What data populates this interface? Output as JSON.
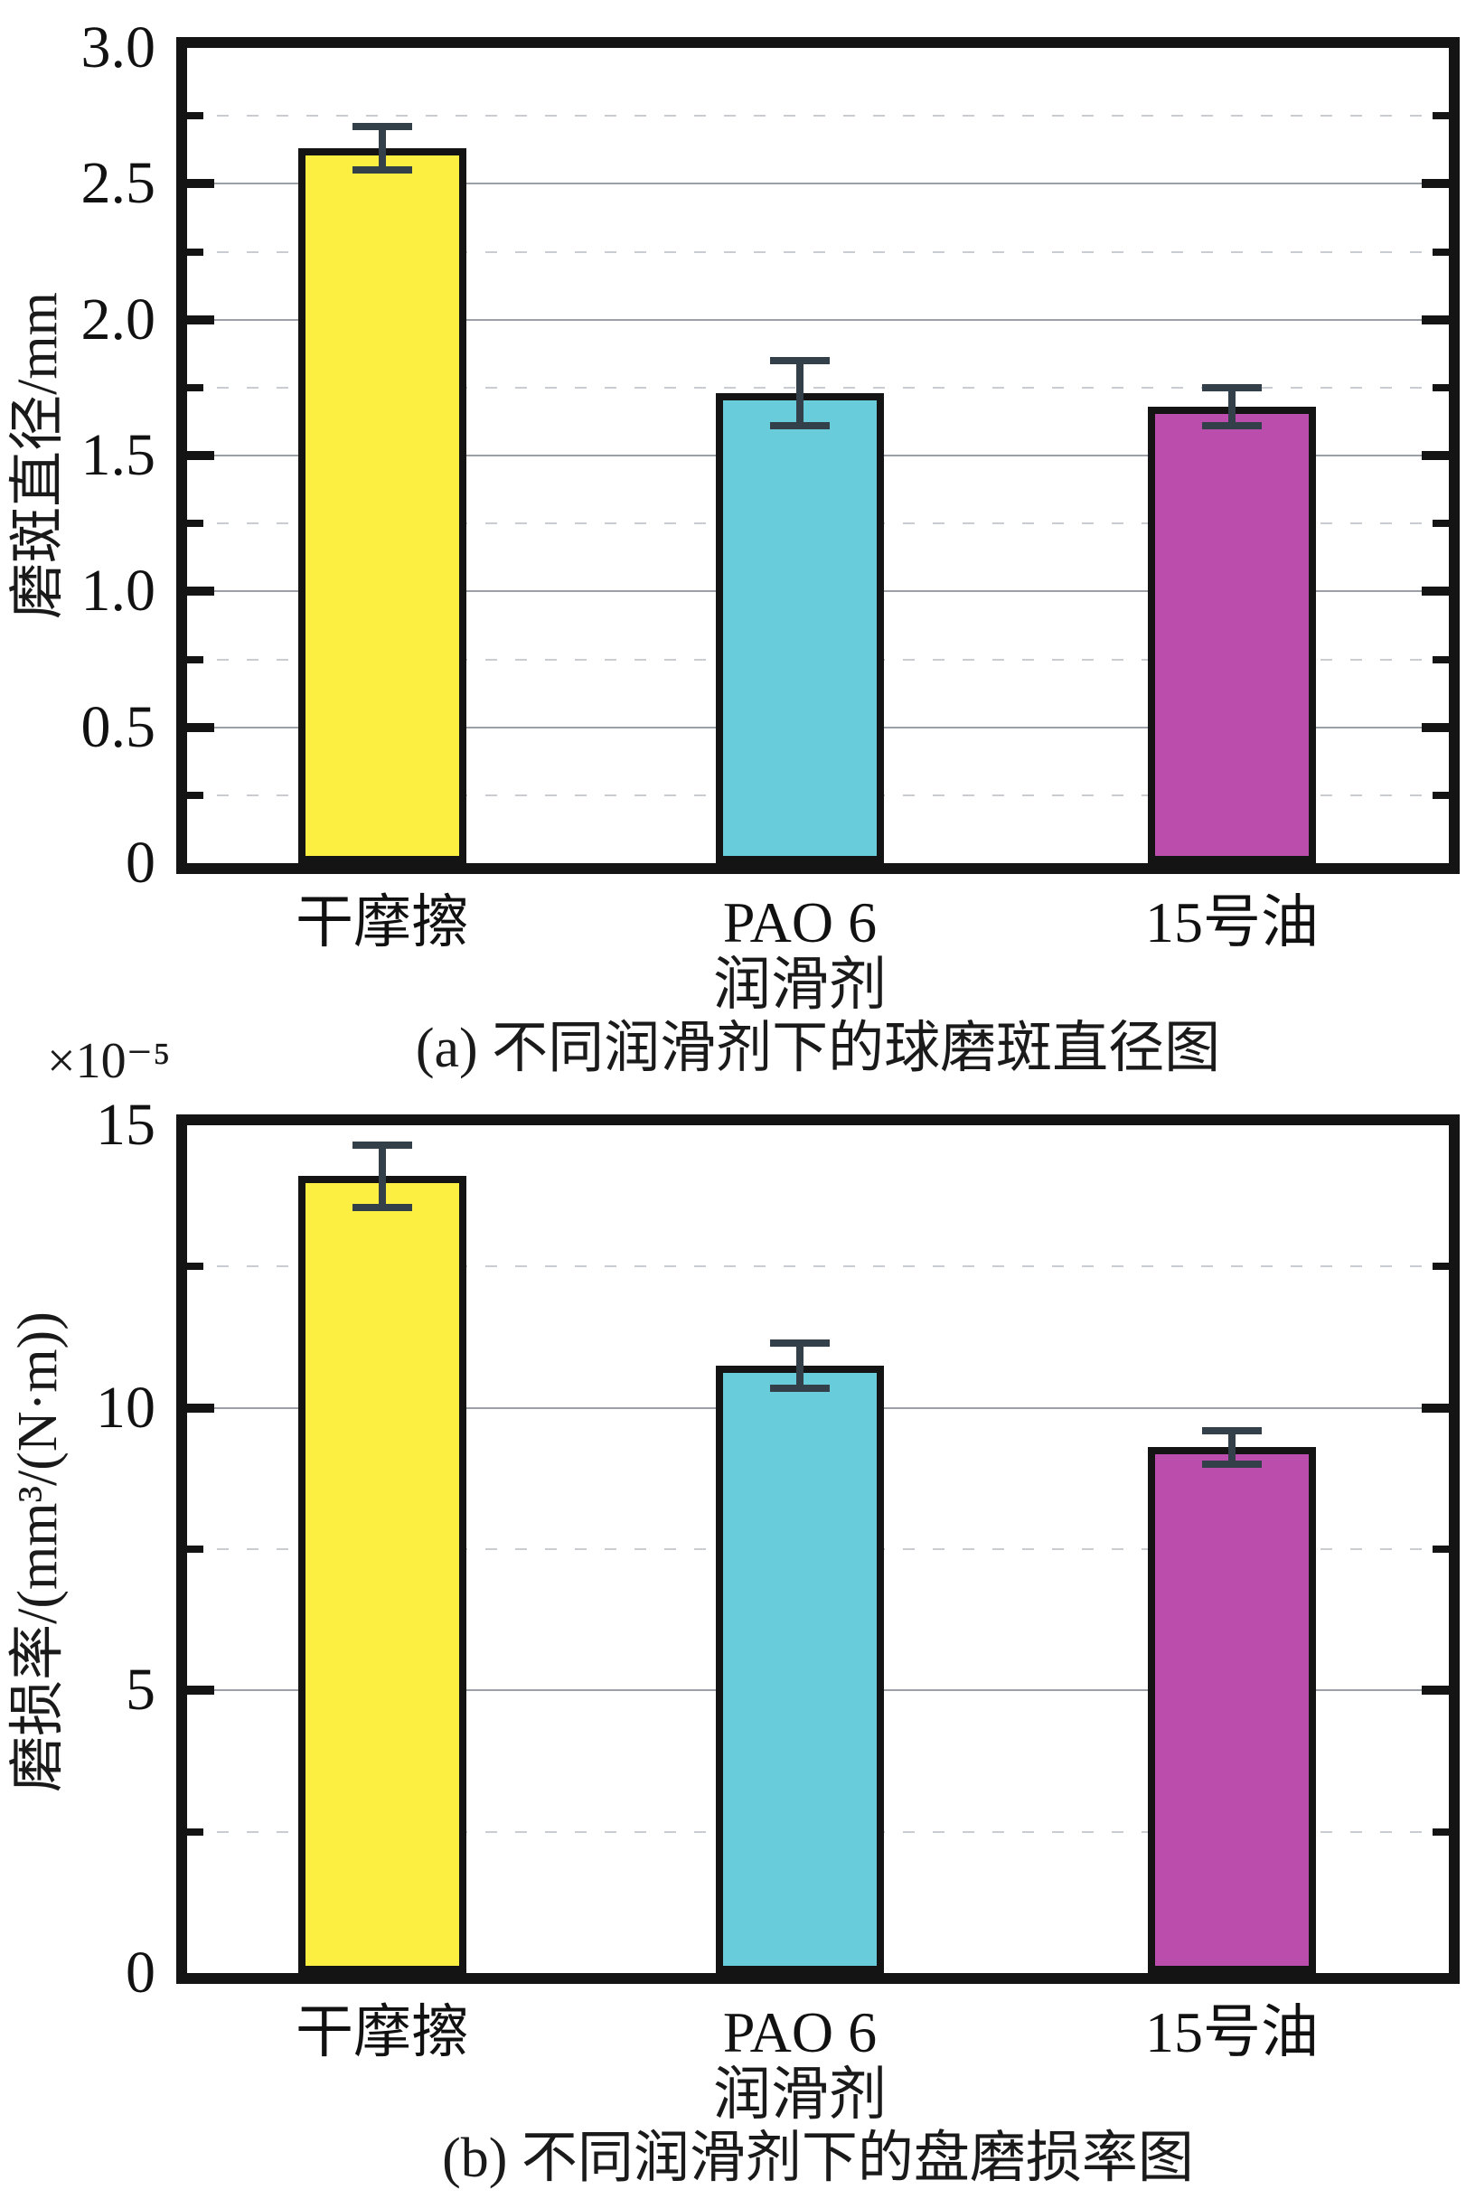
{
  "chart_data": [
    {
      "type": "bar",
      "caption": "(a) 不同润滑剂下的球磨斑直径图",
      "ylabel": "磨斑直径/mm",
      "xlabel": "润滑剂",
      "categories": [
        "干摩擦",
        "PAO 6",
        "15号油"
      ],
      "values": [
        2.63,
        1.73,
        1.68
      ],
      "errors": [
        0.08,
        0.12,
        0.07
      ],
      "bar_colors": [
        "#fcef42",
        "#69ccdb",
        "#bb4eac"
      ],
      "ylim": [
        0,
        3
      ],
      "ytick_major_step": 0.5,
      "ytick_minor_step": 0.25,
      "ytick_labels": [
        [
          "0",
          0
        ],
        [
          "0.5",
          0.5
        ],
        [
          "1.0",
          1
        ],
        [
          "1.5",
          1.5
        ],
        [
          "2.0",
          2
        ],
        [
          "2.5",
          2.5
        ],
        [
          "3.0",
          3
        ]
      ],
      "grid": "solid major gridlines, dashed minor gridlines",
      "legend": "none"
    },
    {
      "type": "bar",
      "caption": "(b) 不同润滑剂下的盘磨损率图",
      "ylabel": "磨损率/(mm³/(N·m))",
      "scale_label": "×10⁻⁵",
      "xlabel": "润滑剂",
      "categories": [
        "干摩擦",
        "PAO 6",
        "15号油"
      ],
      "values": [
        14.1,
        10.75,
        9.3
      ],
      "errors": [
        0.55,
        0.4,
        0.3
      ],
      "bar_colors": [
        "#fcef42",
        "#69ccdb",
        "#bb4eac"
      ],
      "ylim": [
        0,
        15
      ],
      "ytick_major_step": 5,
      "ytick_minor_step": 2.5,
      "ytick_labels": [
        [
          "0",
          0
        ],
        [
          "5",
          5
        ],
        [
          "10",
          10
        ],
        [
          "15",
          15
        ]
      ],
      "grid": "solid major gridlines, dashed minor gridlines",
      "legend": "none"
    }
  ],
  "colors": {
    "frame": "#141414",
    "bar_border": "#141414",
    "error_bar": "#333f49",
    "grid_major": "#9aa0a5",
    "grid_minor": "#c9ccd0"
  }
}
